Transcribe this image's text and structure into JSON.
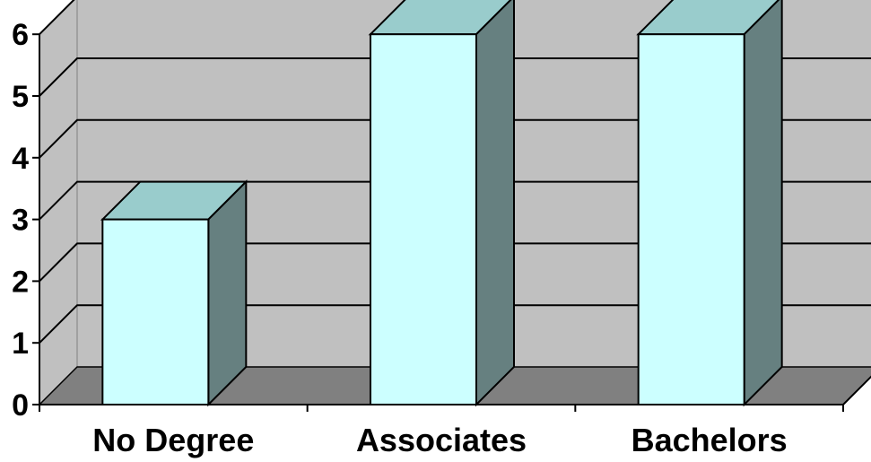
{
  "chart_data": {
    "type": "bar",
    "style": "3d-column",
    "title": "",
    "xlabel": "",
    "ylabel": "",
    "categories": [
      "No Degree",
      "Associates",
      "Bachelors"
    ],
    "values": [
      3,
      6,
      6
    ],
    "ylim": [
      0,
      6
    ],
    "yticks": [
      "0",
      "1",
      "2",
      "3",
      "4",
      "5",
      "6"
    ],
    "grid": true,
    "legend": "none",
    "colors": {
      "wall": "#c0c0c0",
      "floor": "#808080",
      "bar_front": "#ccffff",
      "bar_top": "#99cccc",
      "bar_side": "#668080",
      "gridline": "#000000"
    }
  }
}
